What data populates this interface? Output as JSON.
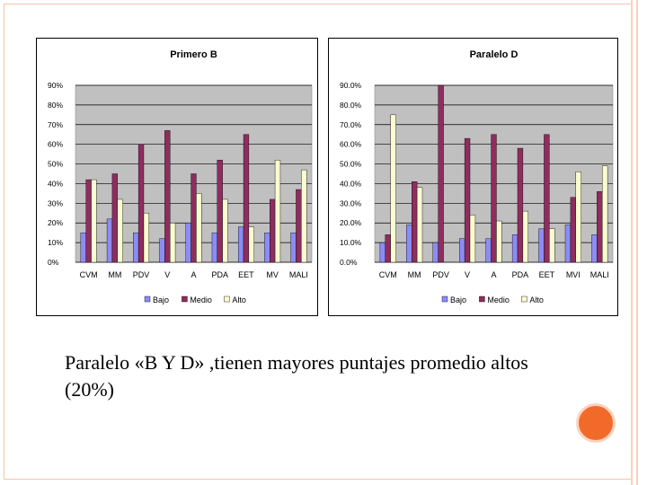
{
  "colors": {
    "bajo": "#8c8cf5",
    "medio": "#8e2d5e",
    "alto": "#fbfbd0",
    "plot_bg": "#c0c0c0",
    "accent": "#f26a2a"
  },
  "caption": "Paralelo «B Y D» ,tienen  mayores puntajes promedio  altos  (20%)",
  "chart_data": [
    {
      "type": "bar",
      "title": "Primero B",
      "categories": [
        "CVM",
        "MM",
        "PDV",
        "V",
        "A",
        "PDA",
        "EET",
        "MV",
        "MALI"
      ],
      "ylim": [
        0,
        90
      ],
      "ytick_labels": [
        "0%",
        "10%",
        "20%",
        "30%",
        "40%",
        "50%",
        "60%",
        "70%",
        "80%",
        "90%"
      ],
      "grid": true,
      "legend": "bottom",
      "series": [
        {
          "name": "Bajo",
          "values": [
            15,
            22,
            15,
            12,
            20,
            15,
            18,
            15,
            15
          ]
        },
        {
          "name": "Medio",
          "values": [
            42,
            45,
            60,
            67,
            45,
            52,
            65,
            32,
            37
          ]
        },
        {
          "name": "Alto",
          "values": [
            42,
            32,
            25,
            20,
            35,
            32,
            18,
            52,
            47
          ]
        }
      ]
    },
    {
      "type": "bar",
      "title": "Paralelo D",
      "categories": [
        "CVM",
        "MM",
        "PDV",
        "V",
        "A",
        "PDA",
        "EET",
        "MVI",
        "MALI"
      ],
      "ylim": [
        0,
        90
      ],
      "ytick_labels": [
        "0.0%",
        "10.0%",
        "20.0%",
        "30.0%",
        "40.0%",
        "50.0%",
        "60.0%",
        "70.0%",
        "80.0%",
        "90.0%"
      ],
      "grid": true,
      "legend": "bottom",
      "series": [
        {
          "name": "Bajo",
          "values": [
            10,
            19,
            10,
            12,
            12,
            14,
            17,
            19,
            14
          ]
        },
        {
          "name": "Medio",
          "values": [
            14,
            41,
            90,
            63,
            65,
            58,
            65,
            33,
            36
          ]
        },
        {
          "name": "Alto",
          "values": [
            75,
            38,
            0,
            24,
            21,
            26,
            17,
            46,
            49
          ]
        }
      ]
    }
  ]
}
